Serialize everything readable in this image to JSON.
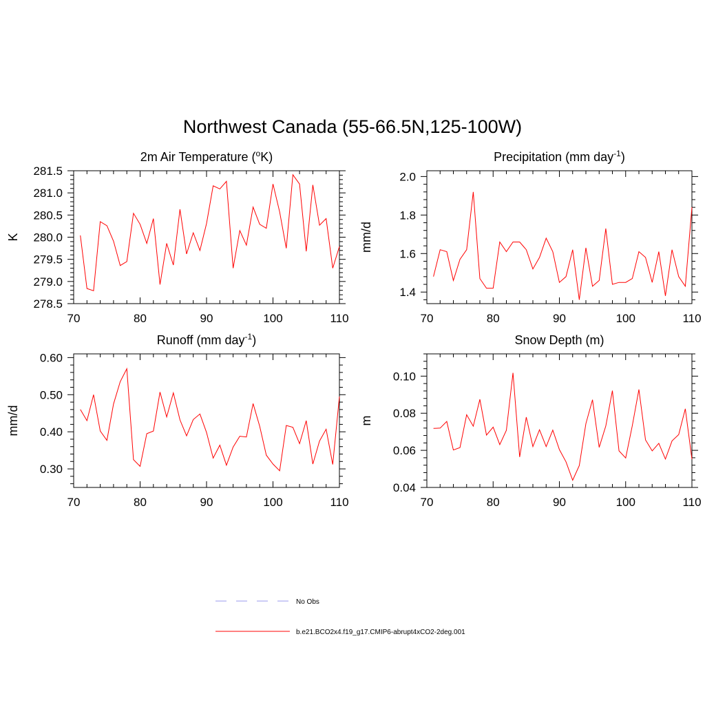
{
  "page": {
    "title": "Northwest Canada (55-66.5N,125-100W)"
  },
  "legend": {
    "items": [
      {
        "label": "No Obs",
        "color": "#9999ee",
        "dash": true
      },
      {
        "label": "b.e21.BCO2x4.f19_g17.CMIP6-abrupt4xCO2-2deg.001",
        "color": "#ff0000",
        "dash": false
      }
    ]
  },
  "chart_data": [
    {
      "type": "line",
      "title": "2m Air Temperature (oK)",
      "title_parts": [
        "2m Air Temperature (",
        "o",
        "K)"
      ],
      "ylabel": "K",
      "xlim": [
        70,
        110
      ],
      "ylim": [
        278.5,
        281.5
      ],
      "xticks": [
        70,
        80,
        90,
        100,
        110
      ],
      "yticks": [
        278.5,
        279.0,
        279.5,
        280.0,
        280.5,
        281.0,
        281.5
      ],
      "ytick_labels": [
        "278.5",
        "279.0",
        "279.5",
        "280.0",
        "280.5",
        "281.0",
        "281.5"
      ],
      "x": [
        71,
        72,
        73,
        74,
        75,
        76,
        77,
        78,
        79,
        80,
        81,
        82,
        83,
        84,
        85,
        86,
        87,
        88,
        89,
        90,
        91,
        92,
        93,
        94,
        95,
        96,
        97,
        98,
        99,
        100,
        101,
        102,
        103,
        104,
        105,
        106,
        107,
        108,
        109,
        110
      ],
      "series": [
        {
          "name": "b.e21.BCO2x4.f19_g17.CMIP6-abrupt4xCO2-2deg.001",
          "color": "#ff0000",
          "values": [
            280.04,
            278.84,
            278.79,
            280.35,
            280.26,
            279.91,
            279.36,
            279.45,
            280.54,
            280.29,
            279.86,
            280.42,
            278.93,
            279.86,
            279.37,
            280.63,
            279.62,
            280.1,
            279.7,
            280.31,
            281.16,
            281.09,
            281.26,
            279.3,
            280.15,
            279.82,
            280.68,
            280.29,
            280.2,
            281.2,
            280.57,
            279.75,
            281.41,
            281.2,
            279.68,
            281.18,
            280.27,
            280.42,
            279.3,
            279.79
          ]
        }
      ]
    },
    {
      "type": "line",
      "title": "Precipitation (mm day-1)",
      "title_parts": [
        "Precipitation (mm day",
        "-1",
        ")"
      ],
      "ylabel": "mm/d",
      "xlim": [
        70,
        110
      ],
      "ylim": [
        1.34,
        2.03
      ],
      "xticks": [
        70,
        80,
        90,
        100,
        110
      ],
      "yticks": [
        1.4,
        1.6,
        1.8,
        2.0
      ],
      "ytick_labels": [
        "1.4",
        "1.6",
        "1.8",
        "2.0"
      ],
      "x": [
        71,
        72,
        73,
        74,
        75,
        76,
        77,
        78,
        79,
        80,
        81,
        82,
        83,
        84,
        85,
        86,
        87,
        88,
        89,
        90,
        91,
        92,
        93,
        94,
        95,
        96,
        97,
        98,
        99,
        100,
        101,
        102,
        103,
        104,
        105,
        106,
        107,
        108,
        109,
        110
      ],
      "series": [
        {
          "name": "b.e21.BCO2x4.f19_g17.CMIP6-abrupt4xCO2-2deg.001",
          "color": "#ff0000",
          "values": [
            1.48,
            1.62,
            1.61,
            1.46,
            1.57,
            1.62,
            1.92,
            1.47,
            1.42,
            1.42,
            1.66,
            1.61,
            1.66,
            1.66,
            1.62,
            1.52,
            1.58,
            1.68,
            1.61,
            1.45,
            1.48,
            1.62,
            1.36,
            1.63,
            1.43,
            1.46,
            1.73,
            1.44,
            1.45,
            1.45,
            1.47,
            1.61,
            1.58,
            1.45,
            1.61,
            1.38,
            1.62,
            1.48,
            1.43,
            1.84
          ]
        }
      ]
    },
    {
      "type": "line",
      "title": "Runoff (mm day-1)",
      "title_parts": [
        "Runoff (mm day",
        "-1",
        ")"
      ],
      "ylabel": "mm/d",
      "xlim": [
        70,
        110
      ],
      "ylim": [
        0.25,
        0.61
      ],
      "xticks": [
        70,
        80,
        90,
        100,
        110
      ],
      "yticks": [
        0.3,
        0.4,
        0.5,
        0.6
      ],
      "ytick_labels": [
        "0.30",
        "0.40",
        "0.50",
        "0.60"
      ],
      "x": [
        71,
        72,
        73,
        74,
        75,
        76,
        77,
        78,
        79,
        80,
        81,
        82,
        83,
        84,
        85,
        86,
        87,
        88,
        89,
        90,
        91,
        92,
        93,
        94,
        95,
        96,
        97,
        98,
        99,
        100,
        101,
        102,
        103,
        104,
        105,
        106,
        107,
        108,
        109,
        110
      ],
      "series": [
        {
          "name": "b.e21.BCO2x4.f19_g17.CMIP6-abrupt4xCO2-2deg.001",
          "color": "#ff0000",
          "values": [
            0.46,
            0.43,
            0.5,
            0.402,
            0.377,
            0.475,
            0.535,
            0.57,
            0.325,
            0.307,
            0.395,
            0.402,
            0.507,
            0.44,
            0.505,
            0.432,
            0.389,
            0.433,
            0.448,
            0.398,
            0.329,
            0.364,
            0.31,
            0.359,
            0.388,
            0.386,
            0.476,
            0.415,
            0.337,
            0.313,
            0.295,
            0.417,
            0.412,
            0.368,
            0.43,
            0.313,
            0.375,
            0.407,
            0.312,
            0.495
          ]
        }
      ]
    },
    {
      "type": "line",
      "title": "Snow Depth (m)",
      "title_parts": [
        "Snow Depth (m)"
      ],
      "ylabel": "m",
      "xlim": [
        70,
        110
      ],
      "ylim": [
        0.04,
        0.112
      ],
      "xticks": [
        70,
        80,
        90,
        100,
        110
      ],
      "yticks": [
        0.04,
        0.06,
        0.08,
        0.1
      ],
      "ytick_labels": [
        "0.04",
        "0.06",
        "0.08",
        "0.10"
      ],
      "x": [
        71,
        72,
        73,
        74,
        75,
        76,
        77,
        78,
        79,
        80,
        81,
        82,
        83,
        84,
        85,
        86,
        87,
        88,
        89,
        90,
        91,
        92,
        93,
        94,
        95,
        96,
        97,
        98,
        99,
        100,
        101,
        102,
        103,
        104,
        105,
        106,
        107,
        108,
        109,
        110
      ],
      "series": [
        {
          "name": "b.e21.BCO2x4.f19_g17.CMIP6-abrupt4xCO2-2deg.001",
          "color": "#ff0000",
          "values": [
            0.0718,
            0.072,
            0.0756,
            0.0602,
            0.0615,
            0.0792,
            0.073,
            0.0875,
            0.0682,
            0.0725,
            0.0631,
            0.0708,
            0.1018,
            0.0564,
            0.0779,
            0.062,
            0.0711,
            0.062,
            0.0709,
            0.0604,
            0.0538,
            0.0439,
            0.0518,
            0.0744,
            0.0873,
            0.0616,
            0.0731,
            0.0922,
            0.0597,
            0.0559,
            0.0733,
            0.0928,
            0.0656,
            0.0597,
            0.0638,
            0.0553,
            0.0651,
            0.0685,
            0.0824,
            0.0553
          ]
        }
      ]
    }
  ]
}
